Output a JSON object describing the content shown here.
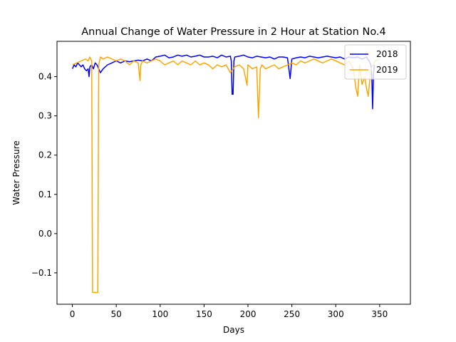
{
  "chart_data": {
    "type": "line",
    "title": "Annual Change of Water Pressure in 2 Hour at Station No.4",
    "xlabel": "Days",
    "ylabel": "Water Pressure",
    "xlim": [
      -17.5,
      385
    ],
    "ylim": [
      -0.18,
      0.49
    ],
    "xticks": [
      0,
      50,
      100,
      150,
      200,
      250,
      300,
      350
    ],
    "xtick_labels": [
      "0",
      "50",
      "100",
      "150",
      "200",
      "250",
      "300",
      "350"
    ],
    "yticks": [
      -0.1,
      0.0,
      0.1,
      0.2,
      0.3,
      0.4
    ],
    "ytick_labels": [
      "−0.1",
      "0.0",
      "0.1",
      "0.2",
      "0.3",
      "0.4"
    ],
    "grid": false,
    "legend_position": "top-right",
    "series": [
      {
        "name": "2018",
        "color": "#0000ff",
        "x": [
          0,
          2,
          4,
          6,
          8,
          10,
          12,
          14,
          16,
          18,
          19,
          20,
          22,
          24,
          26,
          28,
          30,
          32,
          35,
          40,
          45,
          50,
          55,
          60,
          65,
          70,
          75,
          80,
          85,
          90,
          95,
          100,
          105,
          110,
          115,
          120,
          125,
          130,
          135,
          140,
          145,
          150,
          155,
          160,
          165,
          170,
          175,
          180,
          181,
          182,
          183,
          184,
          185,
          190,
          195,
          200,
          205,
          210,
          215,
          220,
          225,
          230,
          235,
          240,
          245,
          248,
          250,
          255,
          260,
          265,
          270,
          275,
          280,
          285,
          290,
          295,
          300,
          305,
          310,
          315,
          320,
          325,
          330,
          335,
          338,
          340,
          341,
          342,
          343,
          344
        ],
        "y": [
          0.42,
          0.43,
          0.425,
          0.435,
          0.43,
          0.425,
          0.43,
          0.42,
          0.415,
          0.42,
          0.4,
          0.425,
          0.43,
          0.42,
          0.435,
          0.43,
          0.42,
          0.41,
          0.42,
          0.43,
          0.435,
          0.44,
          0.435,
          0.44,
          0.438,
          0.44,
          0.442,
          0.44,
          0.445,
          0.44,
          0.45,
          0.452,
          0.455,
          0.448,
          0.45,
          0.455,
          0.452,
          0.455,
          0.45,
          0.452,
          0.455,
          0.45,
          0.45,
          0.452,
          0.448,
          0.455,
          0.45,
          0.452,
          0.44,
          0.355,
          0.355,
          0.44,
          0.45,
          0.452,
          0.455,
          0.45,
          0.448,
          0.452,
          0.45,
          0.448,
          0.45,
          0.445,
          0.45,
          0.45,
          0.448,
          0.395,
          0.445,
          0.448,
          0.45,
          0.448,
          0.452,
          0.45,
          0.448,
          0.45,
          0.452,
          0.45,
          0.448,
          0.45,
          0.445,
          0.45,
          0.448,
          0.45,
          0.445,
          0.45,
          0.44,
          0.43,
          0.4,
          0.318,
          0.41,
          0.43
        ]
      },
      {
        "name": "2019",
        "color": "#ffa500",
        "x": [
          0,
          5,
          10,
          15,
          18,
          20,
          22,
          23,
          24,
          25,
          26,
          27,
          28,
          29,
          30,
          31,
          32,
          35,
          40,
          45,
          50,
          55,
          60,
          65,
          70,
          75,
          77,
          78,
          80,
          85,
          90,
          95,
          100,
          105,
          110,
          115,
          120,
          125,
          130,
          135,
          140,
          145,
          150,
          155,
          160,
          165,
          170,
          175,
          180,
          185,
          190,
          195,
          199,
          200,
          205,
          210,
          212,
          214,
          216,
          220,
          225,
          230,
          235,
          240,
          245,
          250,
          255,
          260,
          265,
          270,
          275,
          280,
          285,
          290,
          295,
          300,
          305,
          310,
          315,
          320,
          323,
          325,
          327,
          330,
          333,
          335,
          337,
          340,
          345,
          350
        ],
        "y": [
          0.43,
          0.435,
          0.44,
          0.445,
          0.44,
          0.45,
          0.44,
          -0.15,
          -0.15,
          -0.15,
          -0.15,
          -0.15,
          -0.15,
          -0.15,
          0.43,
          0.44,
          0.45,
          0.445,
          0.45,
          0.445,
          0.44,
          0.445,
          0.44,
          0.43,
          0.44,
          0.435,
          0.39,
          0.43,
          0.44,
          0.435,
          0.44,
          0.445,
          0.44,
          0.43,
          0.435,
          0.44,
          0.43,
          0.44,
          0.435,
          0.43,
          0.44,
          0.43,
          0.435,
          0.43,
          0.42,
          0.43,
          0.425,
          0.43,
          0.41,
          0.425,
          0.43,
          0.42,
          0.378,
          0.43,
          0.42,
          0.425,
          0.295,
          0.42,
          0.43,
          0.42,
          0.425,
          0.43,
          0.42,
          0.425,
          0.43,
          0.435,
          0.43,
          0.44,
          0.435,
          0.44,
          0.445,
          0.44,
          0.435,
          0.44,
          0.445,
          0.44,
          0.435,
          0.43,
          0.44,
          0.42,
          0.37,
          0.35,
          0.43,
          0.38,
          0.4,
          0.37,
          0.35,
          0.42,
          0.44,
          0.445
        ]
      }
    ]
  }
}
